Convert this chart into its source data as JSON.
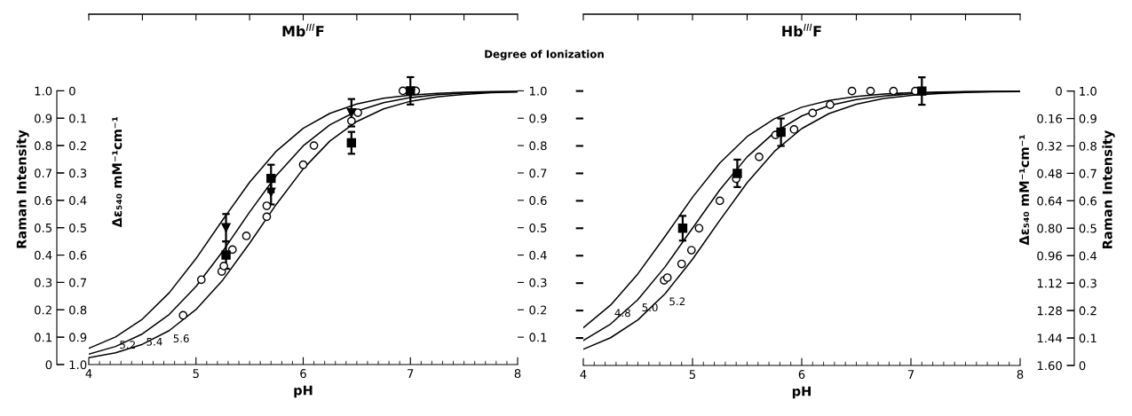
{
  "chart_data": [
    {
      "type": "line",
      "title": "Mb$^{III}$F",
      "xlabel": "pH",
      "ylabel": "Raman Intensity",
      "y2label": "Δε₅₄₀ mM⁻¹cm⁻¹",
      "y3label": "Degree of Ionization",
      "xlim": [
        4,
        8
      ],
      "ylim": [
        0,
        1.28
      ],
      "y2lim": [
        1.0,
        -0.28
      ],
      "y3lim": [
        0,
        1.28
      ],
      "xticks": [
        4,
        {
          "value": 4.1,
          "label": null
        },
        {
          "value": 4.2,
          "label": null
        },
        {
          "value": 4.3,
          "label": null
        },
        {
          "value": 4.4,
          "label": null
        },
        {
          "value": 4.5,
          "label": null
        },
        {
          "value": 4.6,
          "label": null
        },
        {
          "value": 4.7,
          "label": null
        },
        {
          "value": 4.8,
          "label": null
        },
        {
          "value": 4.9,
          "label": null
        },
        5,
        {
          "value": 5.1,
          "label": null
        },
        {
          "value": 5.2,
          "label": null
        },
        {
          "value": 5.3,
          "label": null
        },
        {
          "value": 5.4,
          "label": null
        },
        {
          "value": 5.5,
          "label": null
        },
        {
          "value": 5.6,
          "label": null
        },
        {
          "value": 5.7,
          "label": null
        },
        {
          "value": 5.8,
          "label": null
        },
        {
          "value": 5.9,
          "label": null
        },
        6,
        {
          "value": 6.1,
          "label": null
        },
        {
          "value": 6.2,
          "label": null
        },
        {
          "value": 6.3,
          "label": null
        },
        {
          "value": 6.4,
          "label": null
        },
        {
          "value": 6.5,
          "label": null
        },
        {
          "value": 6.6,
          "label": null
        },
        {
          "value": 6.7,
          "label": null
        },
        {
          "value": 6.8,
          "label": null
        },
        {
          "value": 6.9,
          "label": null
        },
        7,
        {
          "value": 7.1,
          "label": null
        },
        {
          "value": 7.2,
          "label": null
        },
        {
          "value": 7.3,
          "label": null
        },
        {
          "value": 7.4,
          "label": null
        },
        {
          "value": 7.5,
          "label": null
        },
        {
          "value": 7.6,
          "label": null
        },
        {
          "value": 7.7,
          "label": null
        },
        {
          "value": 7.8,
          "label": null
        },
        {
          "value": 7.9,
          "label": null
        },
        8
      ],
      "yticks": [
        0,
        0.1,
        0.2,
        0.3,
        0.4,
        0.5,
        0.6,
        0.7,
        0.8,
        0.9,
        {
          "value": 1.0,
          "label": "1.0"
        }
      ],
      "y2ticks": [
        0,
        0.1,
        0.2,
        0.3,
        0.4,
        0.5,
        0.6,
        0.7,
        0.8,
        0.9,
        {
          "value": 1.0,
          "label": "1.0"
        }
      ],
      "y3ticks": [
        0.1,
        0.2,
        0.3,
        0.4,
        0.5,
        0.6,
        0.7,
        0.8,
        0.9,
        {
          "value": 1.0,
          "label": "1.0"
        }
      ],
      "annotations": [
        {
          "text": "5.2",
          "x": 4.25,
          "y": 0.101
        },
        {
          "text": "5.4",
          "x": 4.5,
          "y": 0.112
        },
        {
          "text": "5.6",
          "x": 4.75,
          "y": 0.124
        }
      ],
      "series": [
        {
          "color": "#000000",
          "x": [
            4,
            4.25,
            4.5,
            4.75,
            5,
            5.25,
            5.5,
            5.75,
            6,
            6.25,
            6.5,
            6.75,
            7,
            7.25,
            7.5,
            7.75,
            8
          ],
          "values": [
            0.059,
            0.101,
            0.166,
            0.262,
            0.387,
            0.529,
            0.666,
            0.78,
            0.863,
            0.918,
            0.952,
            0.973,
            0.984,
            0.991,
            0.995,
            0.997,
            0.998
          ]
        },
        {
          "color": "#000000",
          "x": [
            4,
            4.25,
            4.5,
            4.75,
            5,
            5.25,
            5.5,
            5.75,
            6,
            6.25,
            6.5,
            6.75,
            7,
            7.25,
            7.5,
            7.75,
            8
          ],
          "values": [
            0.038,
            0.066,
            0.112,
            0.183,
            0.285,
            0.414,
            0.557,
            0.691,
            0.799,
            0.876,
            0.926,
            0.957,
            0.975,
            0.986,
            0.992,
            0.996,
            0.997
          ]
        },
        {
          "color": "#000000",
          "x": [
            4,
            4.25,
            4.5,
            4.75,
            5,
            5.25,
            5.5,
            5.75,
            6,
            6.25,
            6.5,
            6.75,
            7,
            7.25,
            7.5,
            7.75,
            8
          ],
          "values": [
            0.025,
            0.043,
            0.074,
            0.124,
            0.201,
            0.309,
            0.443,
            0.586,
            0.715,
            0.817,
            0.888,
            0.934,
            0.962,
            0.978,
            0.987,
            0.993,
            0.996
          ]
        },
        {
          "type": "scatter",
          "marker": "circle",
          "color": "#000000",
          "x": [
            4.88,
            5.05,
            5.24,
            5.26,
            5.34,
            5.47,
            5.66,
            5.66,
            6.0,
            6.1,
            6.45,
            6.51,
            6.93,
            7.05
          ],
          "values": [
            0.18,
            0.31,
            0.34,
            0.36,
            0.42,
            0.47,
            0.54,
            0.58,
            0.73,
            0.8,
            0.89,
            0.92,
            1.0,
            1.0
          ]
        },
        {
          "type": "scatter",
          "marker": "square",
          "color": "#000000",
          "x": [
            5.28,
            5.7,
            6.45,
            7.0
          ],
          "values": [
            0.4,
            0.68,
            0.81,
            1.0
          ],
          "errors": [
            0.05,
            0.05,
            0.04,
            0.05
          ]
        },
        {
          "type": "scatter",
          "marker": "triangle",
          "color": "#000000",
          "x": [
            5.28,
            5.7,
            6.45,
            7.0
          ],
          "values": [
            0.5,
            0.63,
            0.92,
            0.99
          ],
          "errors": [
            0.05,
            0.045,
            0.05,
            null
          ]
        }
      ]
    },
    {
      "type": "line",
      "title": "Hb$^{III}$F",
      "xlabel": "pH",
      "ylabel": "Raman Intensity",
      "y2label": "Δε₅₄₀ mM⁻¹cm⁻¹",
      "xlim": [
        4,
        8
      ],
      "ylim": [
        0,
        1.28
      ],
      "y2lim": [
        1.6,
        -0.448
      ],
      "xticks": [
        4,
        {
          "value": 4.1,
          "label": null
        },
        {
          "value": 4.2,
          "label": null
        },
        {
          "value": 4.3,
          "label": null
        },
        {
          "value": 4.4,
          "label": null
        },
        {
          "value": 4.5,
          "label": null
        },
        {
          "value": 4.6,
          "label": null
        },
        {
          "value": 4.7,
          "label": null
        },
        {
          "value": 4.8,
          "label": null
        },
        {
          "value": 4.9,
          "label": null
        },
        5,
        {
          "value": 5.1,
          "label": null
        },
        {
          "value": 5.2,
          "label": null
        },
        {
          "value": 5.3,
          "label": null
        },
        {
          "value": 5.4,
          "label": null
        },
        {
          "value": 5.5,
          "label": null
        },
        {
          "value": 5.6,
          "label": null
        },
        {
          "value": 5.7,
          "label": null
        },
        {
          "value": 5.8,
          "label": null
        },
        {
          "value": 5.9,
          "label": null
        },
        6,
        {
          "value": 6.1,
          "label": null
        },
        {
          "value": 6.2,
          "label": null
        },
        {
          "value": 6.3,
          "label": null
        },
        {
          "value": 6.4,
          "label": null
        },
        {
          "value": 6.5,
          "label": null
        },
        {
          "value": 6.6,
          "label": null
        },
        {
          "value": 6.7,
          "label": null
        },
        {
          "value": 6.8,
          "label": null
        },
        {
          "value": 6.9,
          "label": null
        },
        7,
        {
          "value": 7.1,
          "label": null
        },
        {
          "value": 7.2,
          "label": null
        },
        {
          "value": 7.3,
          "label": null
        },
        {
          "value": 7.4,
          "label": null
        },
        {
          "value": 7.5,
          "label": null
        },
        {
          "value": 7.6,
          "label": null
        },
        {
          "value": 7.7,
          "label": null
        },
        {
          "value": 7.8,
          "label": null
        },
        {
          "value": 7.9,
          "label": null
        },
        8
      ],
      "yticks": [
        0,
        0.1,
        0.2,
        0.3,
        0.4,
        0.5,
        0.6,
        0.7,
        0.8,
        0.9,
        {
          "value": 1.0,
          "label": "1.0"
        }
      ],
      "y2ticks": [
        0,
        0.16,
        0.32,
        0.48,
        0.64,
        {
          "value": 0.8,
          "label": "0.80"
        },
        0.96,
        1.12,
        1.28,
        1.44,
        {
          "value": 1.6,
          "label": "1.60"
        }
      ],
      "annotations": [
        {
          "text": "4.8",
          "x": 4.25,
          "y": 0.22
        },
        {
          "text": "5.0",
          "x": 4.5,
          "y": 0.24
        },
        {
          "text": "5.2",
          "x": 4.75,
          "y": 0.262
        }
      ],
      "series": [
        {
          "color": "#000000",
          "x": [
            4,
            4.25,
            4.5,
            4.75,
            5,
            5.25,
            5.5,
            5.75,
            6,
            6.25,
            6.5,
            6.75,
            7,
            7.25,
            7.5,
            7.75,
            8
          ],
          "values": [
            0.137,
            0.22,
            0.334,
            0.471,
            0.613,
            0.738,
            0.834,
            0.899,
            0.941,
            0.966,
            0.98,
            0.989,
            0.994,
            0.996,
            0.998,
            0.999,
            0.999
          ]
        },
        {
          "color": "#000000",
          "x": [
            4,
            4.25,
            4.5,
            4.75,
            5,
            5.25,
            5.5,
            5.75,
            6,
            6.25,
            6.5,
            6.75,
            7,
            7.25,
            7.5,
            7.75,
            8
          ],
          "values": [
            0.091,
            0.151,
            0.24,
            0.36,
            0.5,
            0.64,
            0.76,
            0.849,
            0.909,
            0.947,
            0.969,
            0.982,
            0.99,
            0.994,
            0.997,
            0.998,
            0.999
          ]
        },
        {
          "color": "#000000",
          "x": [
            4,
            4.25,
            4.5,
            4.75,
            5,
            5.25,
            5.5,
            5.75,
            6,
            6.25,
            6.5,
            6.75,
            7,
            7.25,
            7.5,
            7.75,
            8
          ],
          "values": [
            0.059,
            0.101,
            0.166,
            0.262,
            0.387,
            0.529,
            0.666,
            0.78,
            0.863,
            0.918,
            0.952,
            0.973,
            0.984,
            0.991,
            0.995,
            0.997,
            0.998
          ]
        },
        {
          "type": "scatter",
          "marker": "circle",
          "color": "#000000",
          "x": [
            4.74,
            4.77,
            4.9,
            4.99,
            5.06,
            5.25,
            5.4,
            5.61,
            5.76,
            5.93,
            6.1,
            6.26,
            6.46,
            6.63,
            6.84,
            7.04
          ],
          "values": [
            0.31,
            0.32,
            0.37,
            0.42,
            0.5,
            0.6,
            0.68,
            0.76,
            0.84,
            0.86,
            0.92,
            0.95,
            1.0,
            1.0,
            1.0,
            1.0
          ]
        },
        {
          "type": "scatter",
          "marker": "square",
          "color": "#000000",
          "x": [
            4.91,
            5.41,
            5.81,
            7.1
          ],
          "values": [
            0.5,
            0.7,
            0.85,
            1.0
          ],
          "errors": [
            0.045,
            0.05,
            0.05,
            0.05
          ]
        }
      ]
    }
  ]
}
